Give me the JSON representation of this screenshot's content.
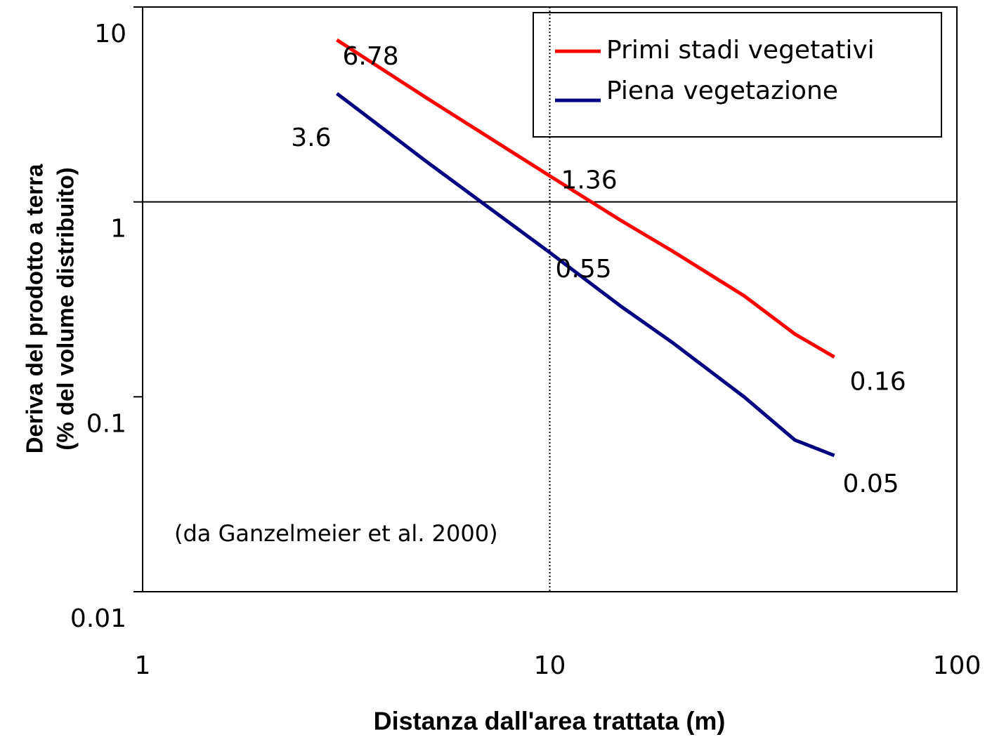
{
  "chart_data": {
    "type": "line",
    "x_label": "Distanza dall'area trattata (m)",
    "y_label": [
      "Deriva del prodotto a terra",
      "(% del volume distribuito)"
    ],
    "annotation": "(da Ganzelmeier et al. 2000)",
    "x": [
      3,
      5,
      10,
      15,
      20,
      30,
      40,
      50
    ],
    "series": [
      {
        "name": "Primi stadi vegetativi",
        "color": "#ff0000",
        "values": [
          6.78,
          3.4,
          1.36,
          0.8,
          0.56,
          0.33,
          0.21,
          0.16
        ],
        "value_labels": [
          "6.78",
          null,
          "1.36",
          null,
          null,
          null,
          null,
          "0.16"
        ]
      },
      {
        "name": "Piena vegetazione",
        "color": "#000080",
        "values": [
          3.6,
          1.6,
          0.55,
          0.29,
          0.19,
          0.1,
          0.06,
          0.05
        ],
        "value_labels": [
          "3.6",
          null,
          "0.55",
          null,
          null,
          null,
          null,
          "0.05"
        ]
      }
    ],
    "xlim": [
      1,
      100
    ],
    "xticks": [
      1,
      10,
      100
    ],
    "xscale": "log",
    "ylim": [
      0.01,
      10
    ],
    "yticks": [
      0.01,
      0.1,
      1,
      10
    ],
    "yscale": "log",
    "hlines": [
      1
    ],
    "vlines": [
      10
    ],
    "legend": "upper right"
  }
}
